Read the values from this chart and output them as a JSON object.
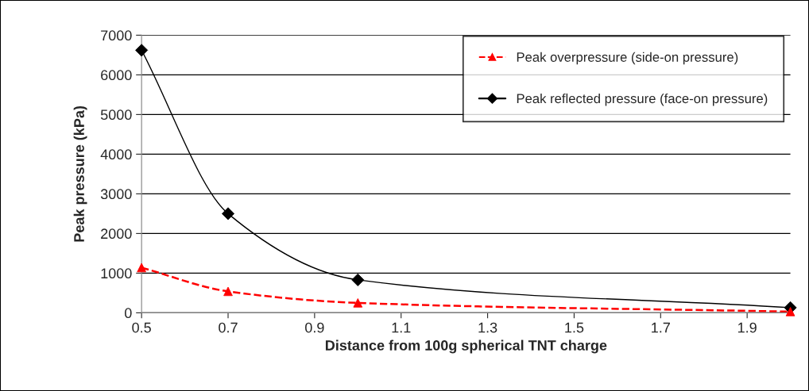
{
  "chart_data": {
    "type": "line",
    "xlabel": "Distance from 100g spherical TNT charge",
    "ylabel": "Peak pressure (kPa)",
    "x": [
      0.5,
      0.7,
      1.0,
      2.0
    ],
    "series": [
      {
        "name": "Peak overpressure (side-on pressure)",
        "color": "#ff0000",
        "values": [
          1140,
          540,
          250,
          30
        ],
        "marker": "triangle",
        "line_style": "dashed"
      },
      {
        "name": "Peak reflected pressure (face-on pressure)",
        "color": "#000000",
        "values": [
          6620,
          2500,
          830,
          130
        ],
        "marker": "diamond",
        "line_style": "solid"
      }
    ],
    "xlim": [
      0.5,
      2.0
    ],
    "xticks": [
      0.5,
      0.7,
      0.9,
      1.1,
      1.3,
      1.5,
      1.7,
      1.9
    ],
    "ylim": [
      0,
      7000
    ],
    "yticks": [
      0,
      1000,
      2000,
      3000,
      4000,
      5000,
      6000,
      7000
    ],
    "grid": "y",
    "legend": "top right"
  }
}
